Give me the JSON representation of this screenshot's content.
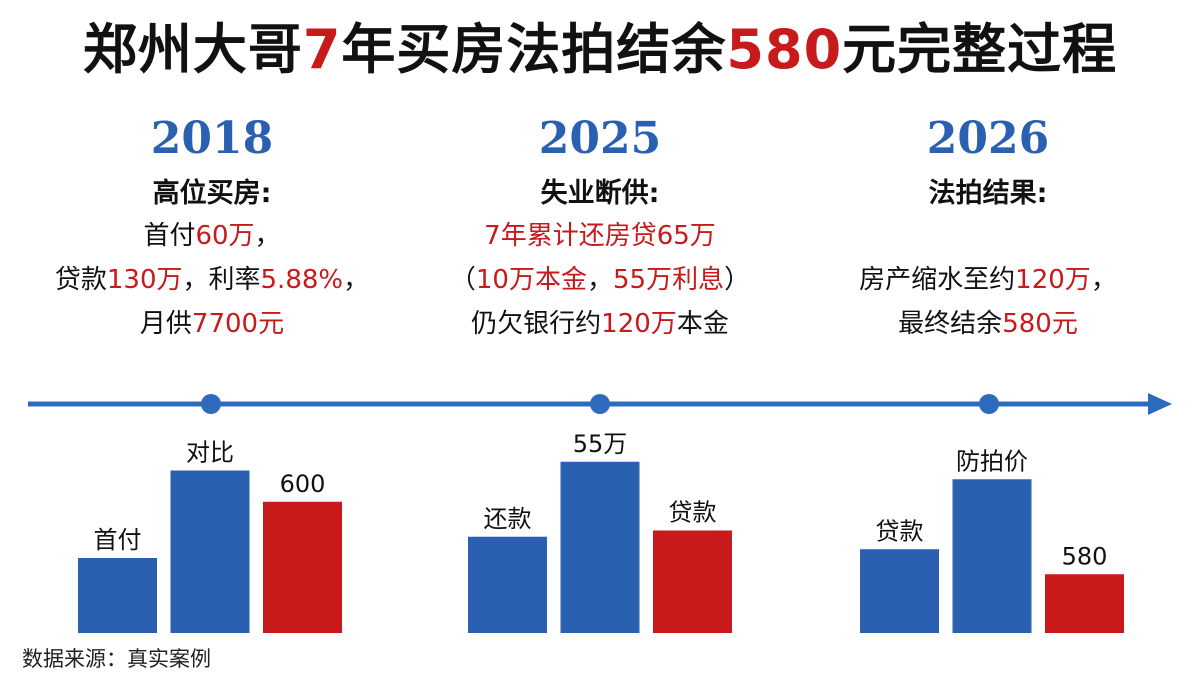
{
  "title": {
    "part1": "郑州大哥",
    "part2": "7",
    "part3": "年买房法拍结余",
    "part4": "580",
    "part5": "元完整过程"
  },
  "columns": [
    {
      "year": "2018",
      "heading": "高位买房:",
      "lines": [
        [
          {
            "t": "首付",
            "red": false
          },
          {
            "t": "60万",
            "red": true
          },
          {
            "t": "，",
            "red": false
          }
        ],
        [
          {
            "t": "贷款",
            "red": false
          },
          {
            "t": "130万",
            "red": true
          },
          {
            "t": "，利率",
            "red": false
          },
          {
            "t": "5.88%",
            "red": true
          },
          {
            "t": "，",
            "red": false
          }
        ],
        [
          {
            "t": "月供",
            "red": false
          },
          {
            "t": "7700元",
            "red": true
          }
        ]
      ]
    },
    {
      "year": "2025",
      "heading": "失业断供:",
      "lines": [
        [
          {
            "t": "7年累计还房贷",
            "red": true
          },
          {
            "t": "65万",
            "red": true
          }
        ],
        [
          {
            "t": "（",
            "red": false
          },
          {
            "t": "10万本金",
            "red": true
          },
          {
            "t": "，",
            "red": false
          },
          {
            "t": "55万利息",
            "red": true
          },
          {
            "t": "）",
            "red": false
          }
        ],
        [
          {
            "t": "仍欠银行约",
            "red": false
          },
          {
            "t": "120万",
            "red": true
          },
          {
            "t": "本金",
            "red": false
          }
        ]
      ]
    },
    {
      "year": "2026",
      "heading": "法拍结果:",
      "lines": [
        [],
        [
          {
            "t": "房产缩水至约",
            "red": false
          },
          {
            "t": "120万",
            "red": true
          },
          {
            "t": "，",
            "red": false
          }
        ],
        [
          {
            "t": "最终结余",
            "red": false
          },
          {
            "t": "580元",
            "red": true
          }
        ]
      ]
    }
  ],
  "source": "数据来源：真实案例",
  "colors": {
    "blue": "#2a60b0",
    "red": "#c8191b",
    "timeline": "#2e6bbf"
  },
  "chart_data": {
    "type": "bar",
    "groups": [
      {
        "bars": [
          {
            "label": "首付",
            "value": 60,
            "color": "blue"
          },
          {
            "label": "对比",
            "value": 130,
            "color": "blue"
          },
          {
            "label": "600",
            "value": 105,
            "color": "red"
          }
        ]
      },
      {
        "bars": [
          {
            "label": "还款",
            "value": 77,
            "color": "blue"
          },
          {
            "label": "55万",
            "value": 137,
            "color": "blue"
          },
          {
            "label": "贷款",
            "value": 82,
            "color": "red"
          }
        ]
      },
      {
        "bars": [
          {
            "label": "贷款",
            "value": 67,
            "color": "blue"
          },
          {
            "label": "防拍价",
            "value": 123,
            "color": "blue"
          },
          {
            "label": "580",
            "value": 47,
            "color": "red"
          }
        ]
      }
    ],
    "note": "Bars carry no value axis; values are read as relative heights in arbitrary units."
  }
}
